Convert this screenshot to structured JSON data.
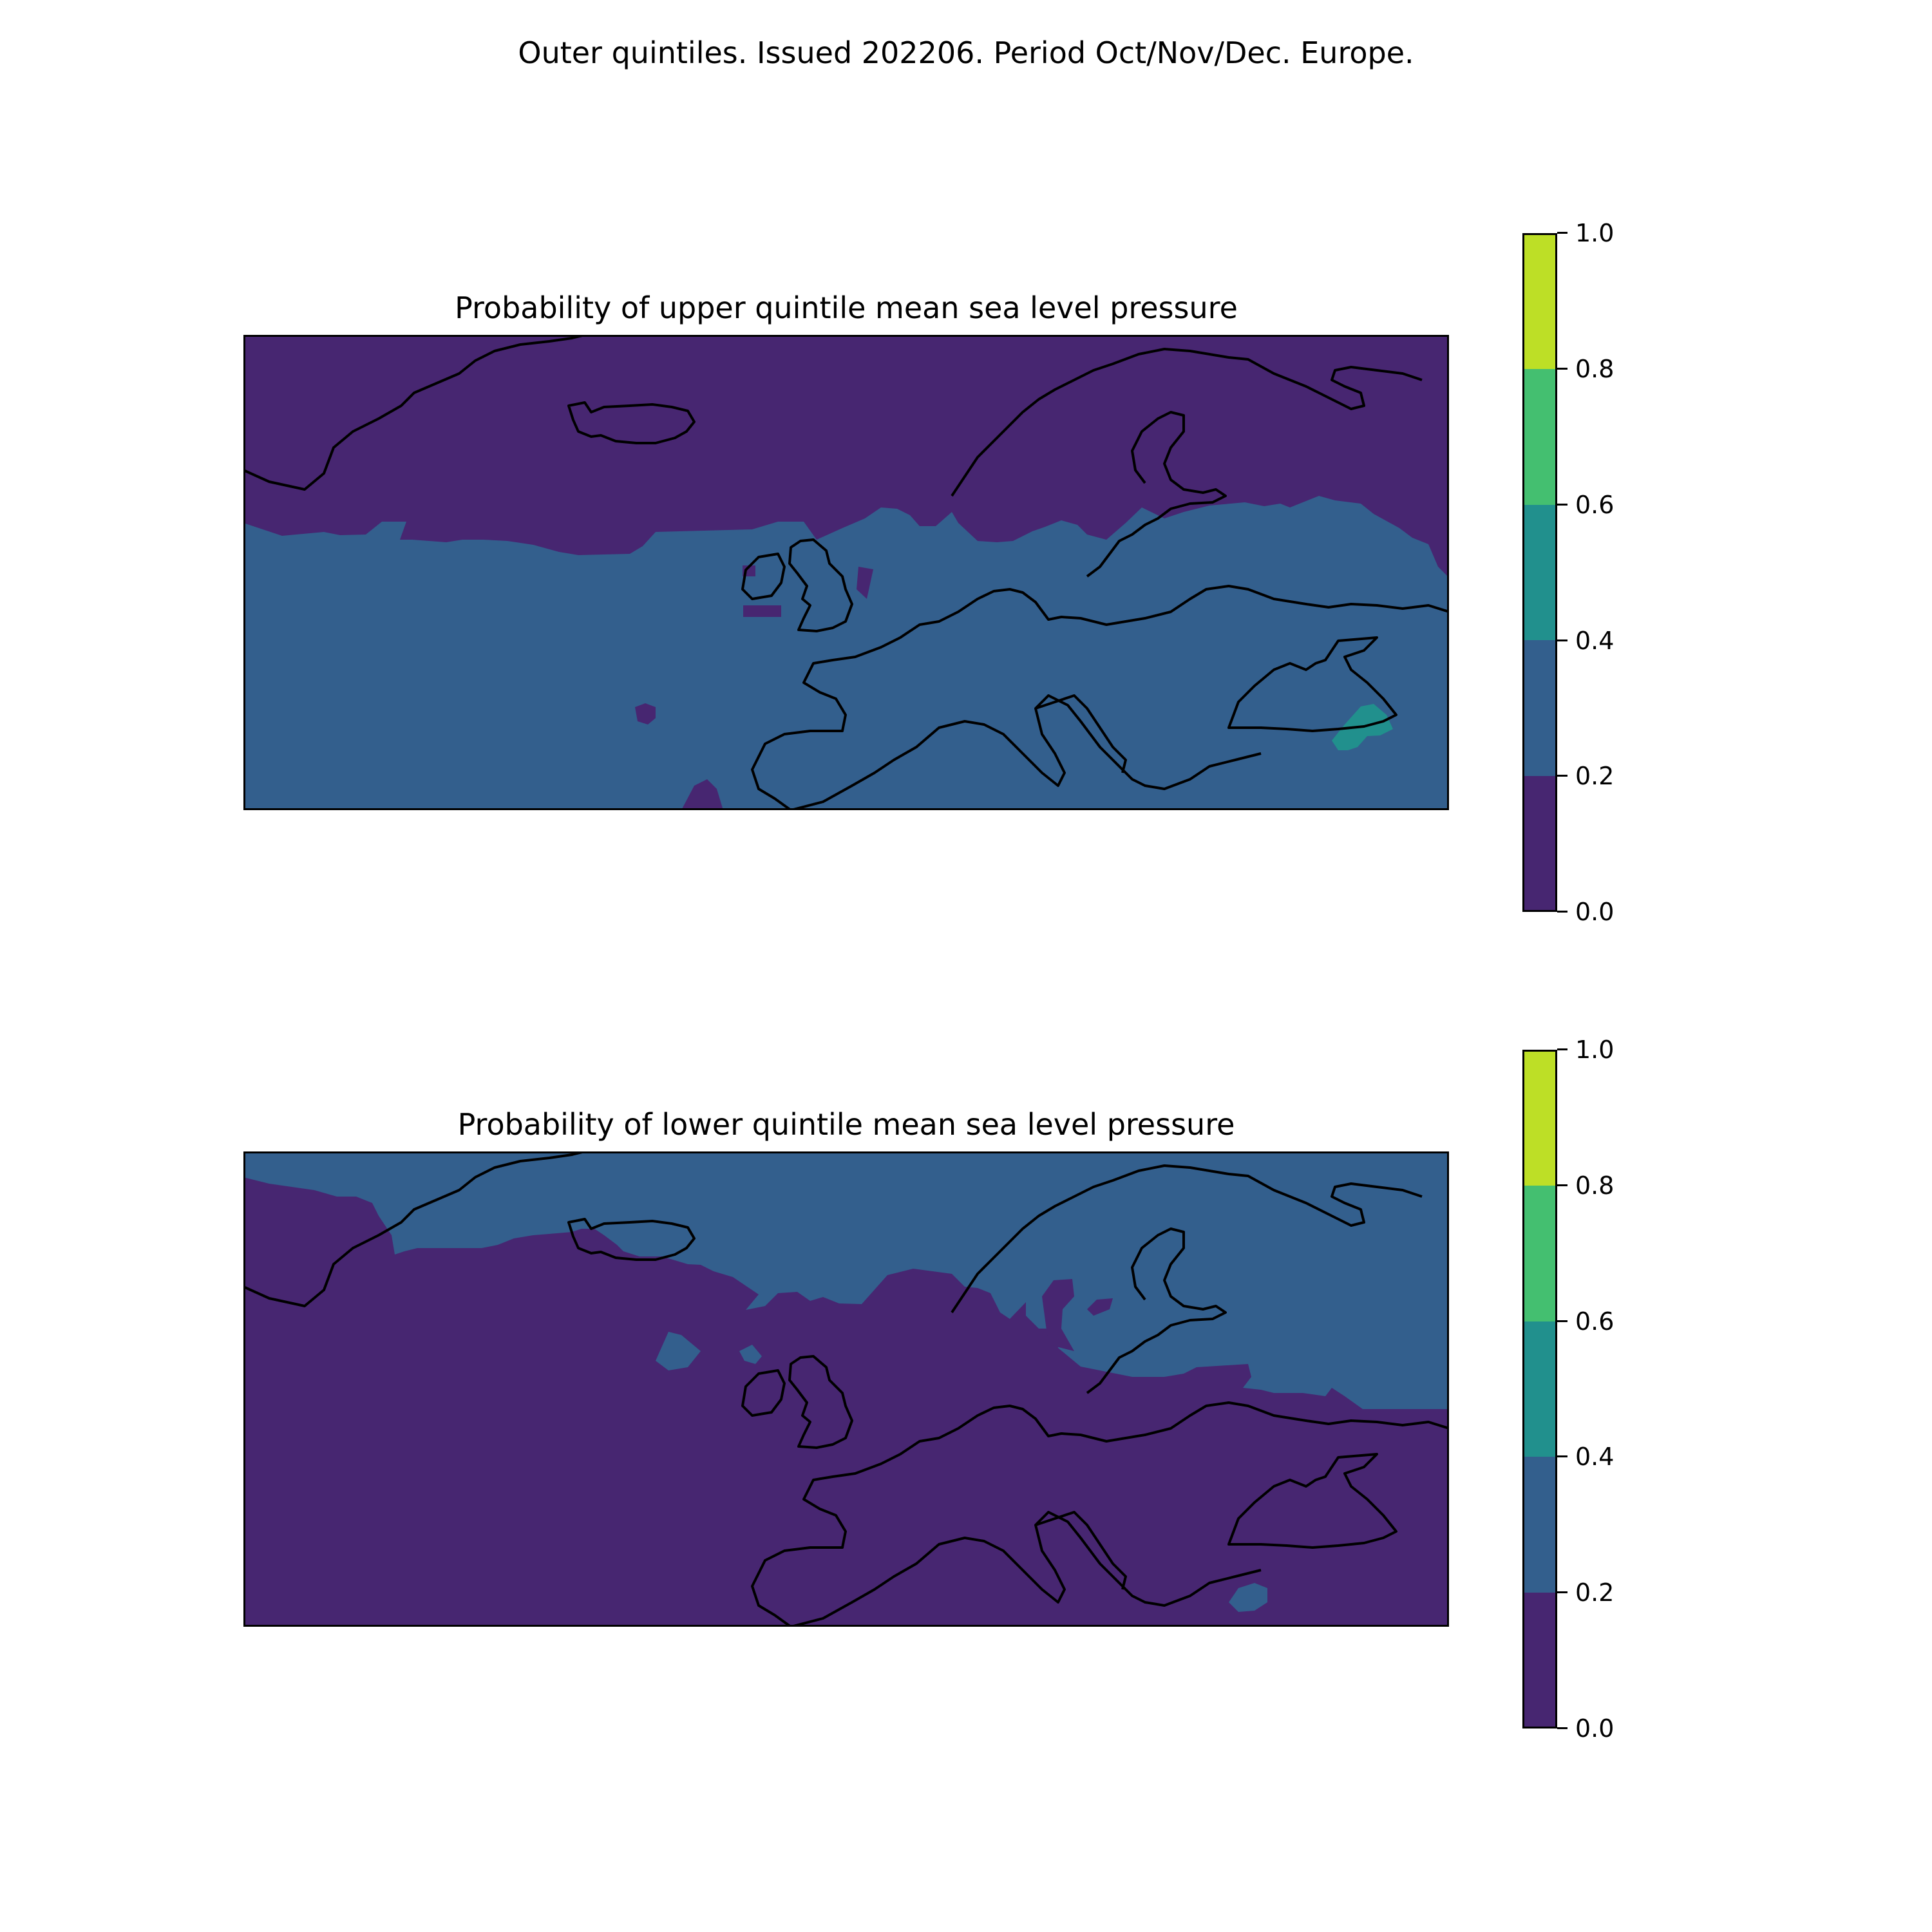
{
  "figure": {
    "suptitle": "Outer quintiles. Issued 202206. Period Oct/Nov/Dec. Europe."
  },
  "panels": [
    {
      "title": "Probability of upper quintile mean sea level pressure",
      "variable": "upper quintile mean sea level pressure probability",
      "dominant_class": "0.2-0.4",
      "regions": [
        {
          "name": "northern band (Greenland, Iceland, Scandinavia, Arctic)",
          "class": "0.0-0.2"
        },
        {
          "name": "central and southern Europe, Atlantic, Mediterranean",
          "class": "0.2-0.4"
        },
        {
          "name": "small patch east of Black Sea (Caucasus)",
          "class": "0.4-0.6"
        },
        {
          "name": "isolated patches: mid-Atlantic, North Sea, western Britain, Gibraltar/Morocco",
          "class": "0.0-0.2"
        }
      ]
    },
    {
      "title": "Probability of lower quintile mean sea level pressure",
      "variable": "lower quintile mean sea level pressure probability",
      "dominant_class": "0.0-0.2",
      "regions": [
        {
          "name": "northern band (Greenland, Iceland, Scandinavia, Arctic, Russia)",
          "class": "0.2-0.4"
        },
        {
          "name": "central and southern Europe, Atlantic, Mediterranean",
          "class": "0.0-0.2"
        },
        {
          "name": "small patch off southern Turkey",
          "class": "0.2-0.4"
        }
      ]
    }
  ],
  "colorbar": {
    "ticks": [
      "0.0",
      "0.2",
      "0.4",
      "0.6",
      "0.8",
      "1.0"
    ],
    "bins": [
      {
        "range": "0.0-0.2",
        "color": "#472671"
      },
      {
        "range": "0.2-0.4",
        "color": "#335f8d"
      },
      {
        "range": "0.4-0.6",
        "color": "#21908d"
      },
      {
        "range": "0.6-0.8",
        "color": "#44bf70"
      },
      {
        "range": "0.8-1.0",
        "color": "#bddf26"
      }
    ]
  },
  "colors": {
    "c0": "#472671",
    "c1": "#335f8d",
    "c2": "#21908d",
    "coast": "#000000"
  }
}
